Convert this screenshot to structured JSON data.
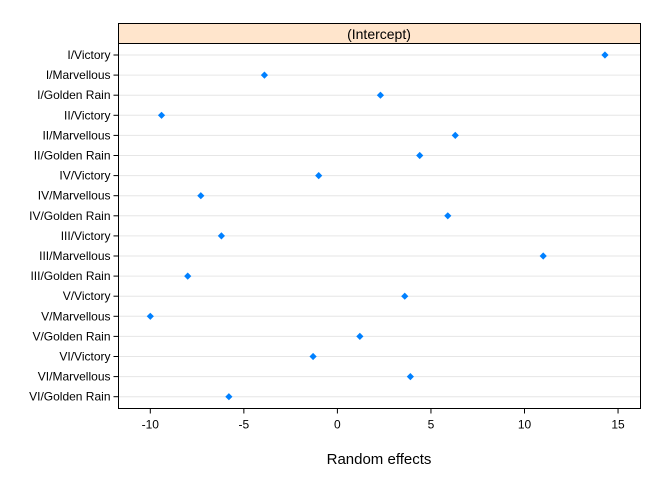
{
  "chart_data": {
    "type": "scatter",
    "strip_label": "(Intercept)",
    "xlabel": "Random effects",
    "xlim": [
      -11.7,
      16.2
    ],
    "x_ticks": [
      -10,
      -5,
      0,
      5,
      10,
      15
    ],
    "categories": [
      "I/Victory",
      "I/Marvellous",
      "I/Golden Rain",
      "II/Victory",
      "II/Marvellous",
      "II/Golden Rain",
      "IV/Victory",
      "IV/Marvellous",
      "IV/Golden Rain",
      "III/Victory",
      "III/Marvellous",
      "III/Golden Rain",
      "V/Victory",
      "V/Marvellous",
      "V/Golden Rain",
      "VI/Victory",
      "VI/Marvellous",
      "VI/Golden Rain"
    ],
    "values": [
      14.3,
      -3.9,
      2.3,
      -9.4,
      6.3,
      4.4,
      -1.0,
      -7.3,
      5.9,
      -6.2,
      11.0,
      -8.0,
      3.6,
      -10.0,
      1.2,
      -1.3,
      3.9,
      -5.8
    ],
    "colors": {
      "point": "#0080ff",
      "strip": "#ffe5cc",
      "gridline": "#e6e6e6",
      "frame": "#000000"
    },
    "grid": true,
    "legend": "none"
  }
}
